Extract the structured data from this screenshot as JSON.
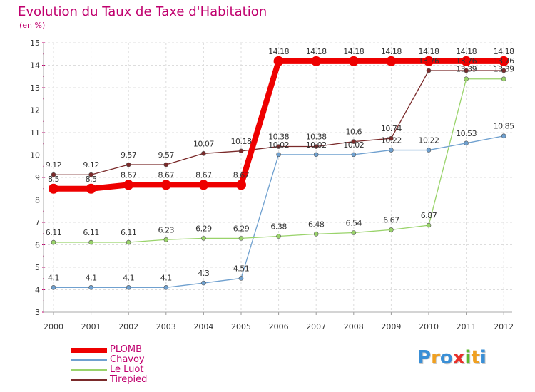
{
  "title": "Evolution du Taux de Taxe d'Habitation",
  "subtitle": "(en %)",
  "brand": {
    "text": "Proxiti",
    "letters": [
      {
        "ch": "P",
        "color": "#3a8fd6"
      },
      {
        "ch": "r",
        "color": "#f0a020"
      },
      {
        "ch": "o",
        "color": "#3a8fd6"
      },
      {
        "ch": "x",
        "color": "#e8302a"
      },
      {
        "ch": "i",
        "color": "#5cb82c"
      },
      {
        "ch": "t",
        "color": "#f0a020"
      },
      {
        "ch": "i",
        "color": "#3a8fd6"
      }
    ]
  },
  "chart_data": {
    "type": "line",
    "x": [
      "2000",
      "2001",
      "2002",
      "2003",
      "2004",
      "2005",
      "2006",
      "2007",
      "2008",
      "2009",
      "2010",
      "2011",
      "2012"
    ],
    "ylim": [
      3,
      15
    ],
    "yticks": [
      "3",
      "4",
      "5",
      "6",
      "7",
      "8",
      "9",
      "10",
      "11",
      "12",
      "13",
      "14",
      "15"
    ],
    "grid": true,
    "legend_position": "bottom-left",
    "series": [
      {
        "name": "PLOMB",
        "color": "#ee0000",
        "values": [
          8.5,
          8.5,
          8.67,
          8.67,
          8.67,
          8.67,
          14.18,
          14.18,
          14.18,
          14.18,
          14.18,
          14.18,
          14.18
        ],
        "labels": [
          "8.5",
          "8.5",
          "8.67",
          "8.67",
          "8.67",
          "8.67",
          "14.18",
          "14.18",
          "14.18",
          "14.18",
          "14.18",
          "14.18",
          "14.18"
        ]
      },
      {
        "name": "Chavoy",
        "color": "#6fa0cf",
        "values": [
          4.1,
          4.1,
          4.1,
          4.1,
          4.3,
          4.51,
          10.02,
          10.02,
          10.02,
          10.22,
          10.22,
          10.53,
          10.85
        ],
        "labels": [
          "4.1",
          "4.1",
          "4.1",
          "4.1",
          "4.3",
          "4.51",
          "10.02",
          "10.02",
          "10.02",
          "10.22",
          "10.22",
          "10.53",
          "10.85"
        ]
      },
      {
        "name": "Le Luot",
        "color": "#99d36a",
        "values": [
          6.11,
          6.11,
          6.11,
          6.23,
          6.29,
          6.29,
          6.38,
          6.48,
          6.54,
          6.67,
          6.87,
          13.39,
          13.39
        ],
        "labels": [
          "6.11",
          "6.11",
          "6.11",
          "6.23",
          "6.29",
          "6.29",
          "6.38",
          "6.48",
          "6.54",
          "6.67",
          "6.87",
          "13.39",
          "13.39"
        ]
      },
      {
        "name": "Tirepied",
        "color": "#7a2a2a",
        "values": [
          9.12,
          9.12,
          9.57,
          9.57,
          10.07,
          10.18,
          10.38,
          10.38,
          10.6,
          10.74,
          13.76,
          13.76,
          13.76
        ],
        "labels": [
          "9.12",
          "9.12",
          "9.57",
          "9.57",
          "10.07",
          "10.18",
          "10.38",
          "10.38",
          "10.6",
          "10.74",
          "13.76",
          "13.76",
          "13.76"
        ]
      }
    ]
  }
}
